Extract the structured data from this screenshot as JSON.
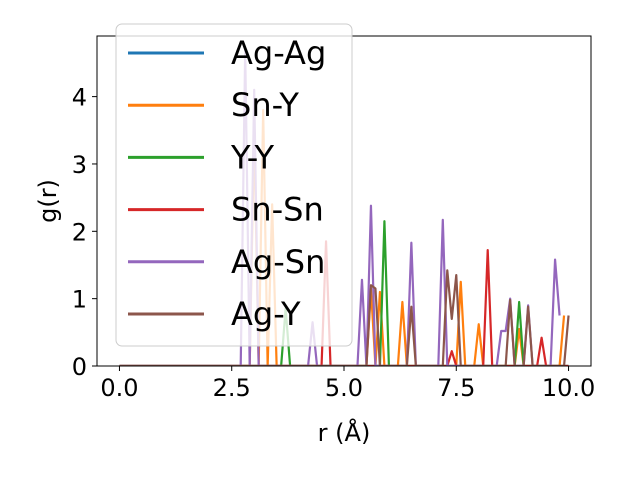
{
  "chart_data": {
    "type": "line",
    "xlabel": "r (Å)",
    "ylabel": "g(r)",
    "xlim": [
      -0.5,
      10.5
    ],
    "ylim": [
      0,
      4.9
    ],
    "xticks": [
      0.0,
      2.5,
      5.0,
      7.5,
      10.0
    ],
    "xtick_labels": [
      "0.0",
      "2.5",
      "5.0",
      "7.5",
      "10.0"
    ],
    "yticks": [
      0,
      1,
      2,
      3,
      4
    ],
    "ytick_labels": [
      "0",
      "1",
      "2",
      "3",
      "4"
    ],
    "grid": false,
    "legend_position": "top-left",
    "series": [
      {
        "name": "Ag-Ag",
        "color": "#1f77b4",
        "points": [
          [
            0,
            0
          ],
          [
            10,
            0
          ]
        ]
      },
      {
        "name": "Sn-Y",
        "color": "#ff7f0e",
        "points": [
          [
            0,
            0
          ],
          [
            2.9,
            0
          ],
          [
            3.0,
            3.5
          ],
          [
            3.1,
            0
          ],
          [
            3.2,
            3.8
          ],
          [
            3.3,
            0
          ],
          [
            3.4,
            2.4
          ],
          [
            3.5,
            0
          ],
          [
            5.5,
            0
          ],
          [
            5.6,
            1.15
          ],
          [
            5.7,
            0
          ],
          [
            5.8,
            1.1
          ],
          [
            5.9,
            0
          ],
          [
            6.2,
            0
          ],
          [
            6.3,
            0.95
          ],
          [
            6.4,
            0
          ],
          [
            7.5,
            0
          ],
          [
            7.6,
            1.25
          ],
          [
            7.7,
            0
          ],
          [
            7.9,
            0
          ],
          [
            8.0,
            0.62
          ],
          [
            8.1,
            0
          ],
          [
            8.8,
            0
          ],
          [
            8.9,
            0.55
          ],
          [
            9.0,
            0
          ],
          [
            9.8,
            0
          ],
          [
            9.9,
            0.75
          ]
        ]
      },
      {
        "name": "Y-Y",
        "color": "#2ca02c",
        "points": [
          [
            0,
            0
          ],
          [
            3.6,
            0
          ],
          [
            3.7,
            0.85
          ],
          [
            3.8,
            0
          ],
          [
            5.8,
            0
          ],
          [
            5.9,
            2.15
          ],
          [
            6.0,
            0
          ],
          [
            8.8,
            0
          ],
          [
            8.9,
            0.95
          ],
          [
            9.0,
            0
          ],
          [
            10,
            0
          ]
        ]
      },
      {
        "name": "Sn-Sn",
        "color": "#d62728",
        "points": [
          [
            0,
            0
          ],
          [
            4.5,
            0
          ],
          [
            4.6,
            1.85
          ],
          [
            4.7,
            0
          ],
          [
            7.3,
            0
          ],
          [
            7.4,
            0.22
          ],
          [
            7.5,
            0
          ],
          [
            8.1,
            0
          ],
          [
            8.2,
            1.72
          ],
          [
            8.3,
            0
          ],
          [
            9.3,
            0
          ],
          [
            9.4,
            0.42
          ],
          [
            9.5,
            0
          ],
          [
            10,
            0
          ]
        ]
      },
      {
        "name": "Ag-Sn",
        "color": "#9467bd",
        "points": [
          [
            0,
            0
          ],
          [
            2.7,
            0
          ],
          [
            2.8,
            4.7
          ],
          [
            2.9,
            0
          ],
          [
            3.0,
            4.1
          ],
          [
            3.1,
            0
          ],
          [
            4.2,
            0
          ],
          [
            4.3,
            0.65
          ],
          [
            4.4,
            0
          ],
          [
            5.3,
            0
          ],
          [
            5.4,
            1.28
          ],
          [
            5.5,
            0
          ],
          [
            5.6,
            2.38
          ],
          [
            5.7,
            0
          ],
          [
            6.4,
            0
          ],
          [
            6.5,
            1.83
          ],
          [
            6.6,
            0
          ],
          [
            7.1,
            0
          ],
          [
            7.2,
            2.17
          ],
          [
            7.3,
            0
          ],
          [
            8.4,
            0
          ],
          [
            8.5,
            0.52
          ],
          [
            8.6,
            0.52
          ],
          [
            8.7,
            1.0
          ],
          [
            8.8,
            0
          ],
          [
            9.0,
            0
          ],
          [
            9.1,
            0.9
          ],
          [
            9.2,
            0
          ],
          [
            9.6,
            0
          ],
          [
            9.7,
            1.58
          ],
          [
            9.8,
            0.75
          ]
        ]
      },
      {
        "name": "Ag-Y",
        "color": "#8c564b",
        "points": [
          [
            0,
            0
          ],
          [
            5.5,
            0
          ],
          [
            5.6,
            1.2
          ],
          [
            5.7,
            1.15
          ],
          [
            5.8,
            0
          ],
          [
            6.4,
            0
          ],
          [
            6.5,
            0.88
          ],
          [
            6.6,
            0
          ],
          [
            7.2,
            0
          ],
          [
            7.3,
            1.42
          ],
          [
            7.4,
            0.7
          ],
          [
            7.5,
            1.35
          ],
          [
            7.6,
            0
          ],
          [
            8.6,
            0
          ],
          [
            8.7,
            0.98
          ],
          [
            8.8,
            0
          ],
          [
            9.0,
            0
          ],
          [
            9.1,
            0.88
          ],
          [
            9.2,
            0
          ],
          [
            9.9,
            0
          ],
          [
            10.0,
            0.75
          ]
        ]
      }
    ]
  }
}
